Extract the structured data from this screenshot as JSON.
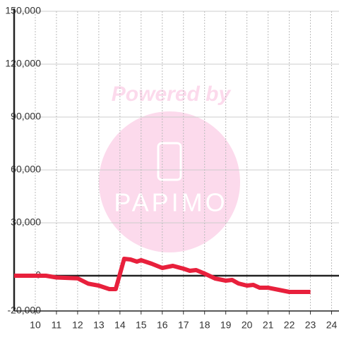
{
  "chart_data": {
    "type": "line",
    "watermark": [
      "Powered by",
      "PAPIMO"
    ],
    "x": [
      9,
      10,
      10.5,
      11,
      12,
      12.5,
      13,
      13.5,
      13.8,
      14.2,
      14.5,
      14.8,
      15,
      15.5,
      16,
      16.5,
      17,
      17.3,
      17.6,
      18,
      18.5,
      19,
      19.3,
      19.6,
      20,
      20.3,
      20.6,
      21,
      21.5,
      22,
      23
    ],
    "series": [
      {
        "color": "#e8203c",
        "values": [
          0,
          0,
          0,
          -1000,
          -1500,
          -4500,
          -5600,
          -7600,
          -7600,
          9600,
          9200,
          8000,
          8800,
          6800,
          4400,
          5600,
          4000,
          2800,
          3200,
          1200,
          -1600,
          -2800,
          -2400,
          -4400,
          -5600,
          -5200,
          -6800,
          -6800,
          -8000,
          -9200,
          -9200
        ]
      }
    ],
    "xlim": [
      9,
      24.35
    ],
    "xticks": [
      10,
      11,
      12,
      13,
      14,
      15,
      16,
      17,
      18,
      19,
      20,
      21,
      22,
      23,
      24
    ],
    "ylim": [
      -20000,
      150000
    ],
    "yticks": [
      {
        "value": -20000,
        "label": "-20,000"
      },
      0,
      {
        "value": 30000,
        "label": "30,000"
      },
      {
        "value": 60000,
        "label": "60,000"
      },
      {
        "value": 90000,
        "label": "90,000"
      },
      {
        "value": 120000,
        "label": "120,000"
      },
      {
        "value": 150000,
        "label": "150,000"
      }
    ],
    "grid": true
  }
}
